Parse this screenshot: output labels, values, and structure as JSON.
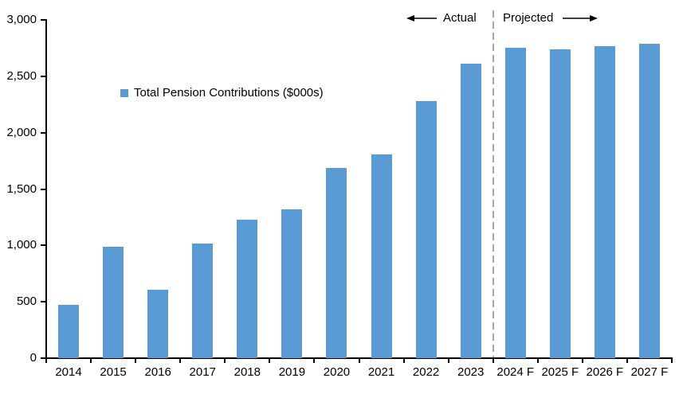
{
  "chart_data": {
    "type": "bar",
    "title": "",
    "xlabel": "",
    "ylabel": "",
    "legend": "Total Pension Contributions ($000s)",
    "legend_position": "inside-upper-left",
    "grid": false,
    "categories": [
      "2014",
      "2015",
      "2016",
      "2017",
      "2018",
      "2019",
      "2020",
      "2021",
      "2022",
      "2023",
      "2024 F",
      "2025 F",
      "2026 F",
      "2027 F"
    ],
    "values": [
      470,
      990,
      610,
      1020,
      1230,
      1320,
      1690,
      1810,
      2280,
      2610,
      2750,
      2740,
      2770,
      2790
    ],
    "ylim": [
      0,
      3000
    ],
    "ytick_step": 500,
    "ytick_labels": [
      "0",
      "500",
      "1,000",
      "1,500",
      "2,000",
      "2,500",
      "3,000"
    ],
    "bar_color": "#5b9bd5",
    "axis_color": "#000000",
    "divider_color": "#a6a6a6",
    "projected_start_category": "2024 F",
    "annotations": {
      "actual_label": "Actual",
      "projected_label": "Projected"
    }
  }
}
